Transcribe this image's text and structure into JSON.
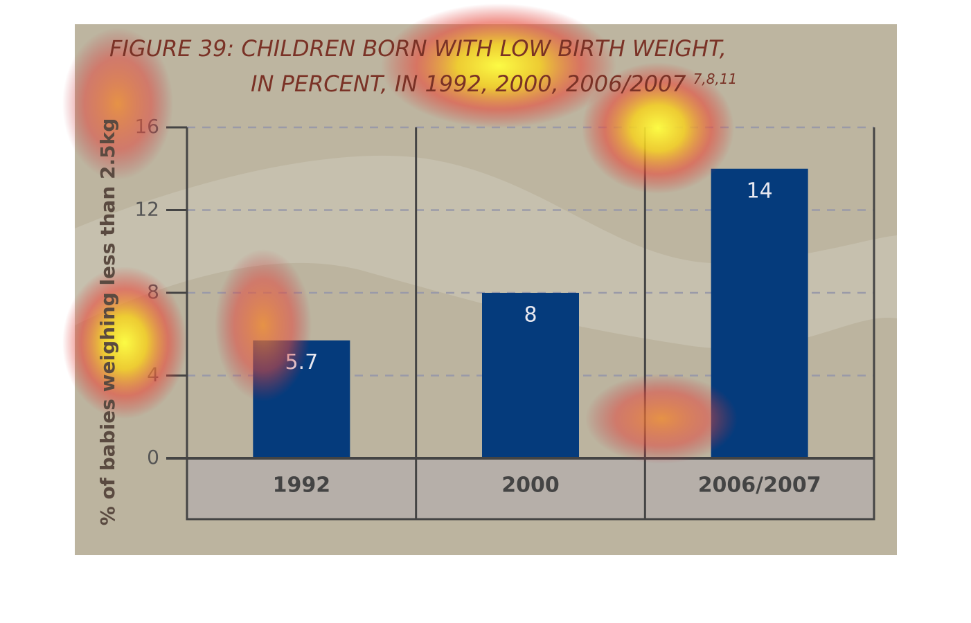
{
  "chart_data": {
    "type": "bar",
    "title": "FIGURE 39: CHILDREN BORN WITH LOW BIRTH WEIGHT,",
    "subtitle": "IN PERCENT, IN 1992, 2000, 2006/2007",
    "title_superscript": "7,8,11",
    "y_label": "% of babies weighing less than 2.5kg",
    "categories": [
      "1992",
      "2000",
      "2006/2007"
    ],
    "values": [
      5.7,
      8,
      14
    ],
    "color": "#053b7c",
    "ylim": [
      0,
      16
    ],
    "yticks": [
      0,
      4,
      8,
      12,
      16
    ],
    "grid": true
  }
}
